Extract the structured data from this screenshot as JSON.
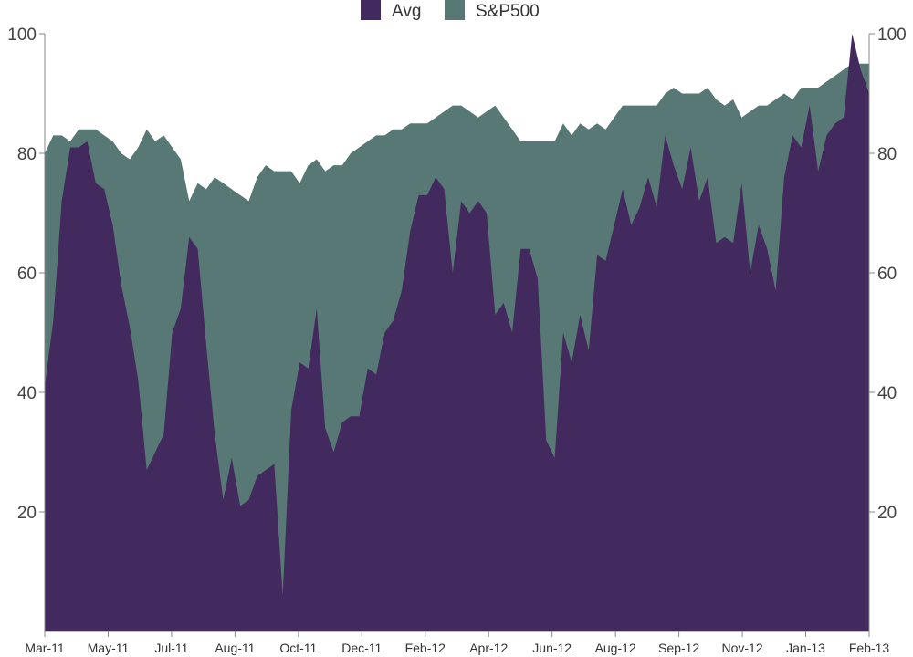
{
  "chart_data": {
    "type": "area",
    "title": "",
    "xlabel": "",
    "ylabel": "",
    "ylim": [
      0,
      100
    ],
    "y_ticks": [
      20,
      40,
      60,
      80,
      100
    ],
    "y_axes": "left-and-right",
    "grid": false,
    "legend_position": "top-center",
    "x_ticks": [
      "Mar-11",
      "May-11",
      "Jul-11",
      "Aug-11",
      "Oct-11",
      "Dec-11",
      "Feb-12",
      "Apr-12",
      "Jun-12",
      "Aug-12",
      "Sep-12",
      "Nov-12",
      "Jan-13",
      "Feb-13"
    ],
    "series": [
      {
        "name": "S&P500",
        "color": "#577874",
        "values": [
          80,
          83,
          83,
          82,
          84,
          84,
          84,
          83,
          82,
          80,
          79,
          81,
          84,
          82,
          83,
          81,
          79,
          72,
          75,
          74,
          76,
          75,
          74,
          73,
          72,
          76,
          78,
          77,
          77,
          77,
          75,
          78,
          79,
          77,
          78,
          78,
          80,
          81,
          82,
          83,
          83,
          84,
          84,
          85,
          85,
          85,
          86,
          87,
          88,
          88,
          87,
          86,
          87,
          88,
          86,
          84,
          82,
          82,
          82,
          82,
          82,
          85,
          83,
          85,
          84,
          85,
          84,
          86,
          88,
          88,
          88,
          88,
          88,
          90,
          91,
          90,
          90,
          90,
          91,
          89,
          88,
          89,
          86,
          87,
          88,
          88,
          89,
          90,
          89,
          91,
          91,
          91,
          92,
          93,
          94,
          95,
          95,
          95
        ]
      },
      {
        "name": "Avg",
        "color": "#432a5e",
        "values": [
          41,
          52,
          72,
          81,
          81,
          82,
          75,
          74,
          68,
          58,
          51,
          42,
          27,
          30,
          33,
          50,
          54,
          66,
          64,
          48,
          33,
          22,
          29,
          21,
          22,
          26,
          27,
          28,
          6,
          37,
          45,
          44,
          54,
          34,
          30,
          35,
          36,
          36,
          44,
          43,
          50,
          52,
          57,
          67,
          73,
          73,
          76,
          74,
          60,
          72,
          70,
          72,
          70,
          53,
          55,
          50,
          64,
          64,
          59,
          32,
          29,
          50,
          45,
          53,
          47,
          63,
          62,
          68,
          74,
          68,
          71,
          76,
          71,
          83,
          78,
          74,
          81,
          72,
          76,
          65,
          66,
          65,
          75,
          60,
          68,
          64,
          57,
          76,
          83,
          81,
          88,
          77,
          83,
          85,
          86,
          100,
          94,
          90
        ]
      }
    ]
  }
}
